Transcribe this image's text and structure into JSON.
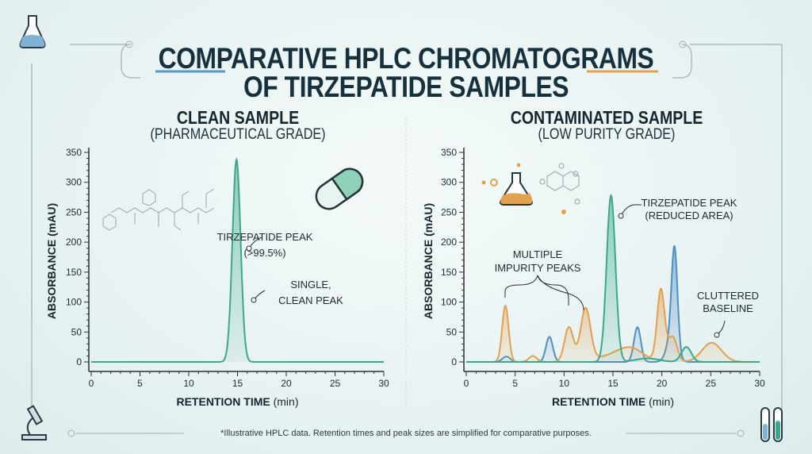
{
  "title": {
    "line1": "COMPARATIVE HPLC CHROMATOGRAMS",
    "line2": "OF TIRZEPATIDE SAMPLES"
  },
  "colors": {
    "green": "#3aa88a",
    "orange": "#e3a14f",
    "blue": "#4f8fc4",
    "text": "#16303c"
  },
  "footer": "*Illustrative HPLC data. Retention times and peak sizes are simplified for comparative purposes.",
  "chart_data": [
    {
      "type": "line",
      "title": "CLEAN SAMPLE",
      "subtitle": "(PHARMACEUTICAL GRADE)",
      "xlabel_bold": "RETENTION TIME",
      "xlabel_unit": "(min)",
      "ylabel": "ABSORBANCE (mAU)",
      "xlim": [
        0,
        30
      ],
      "ylim": [
        0,
        350
      ],
      "xticks": [
        "0",
        "5",
        "10",
        "15",
        "20",
        "25",
        "30"
      ],
      "yticks": [
        "0",
        "50",
        "100",
        "150",
        "200",
        "250",
        "300",
        "350"
      ],
      "grid": false,
      "series": [
        {
          "color": "#3aa88a",
          "baseline": 0,
          "peaks": [
            {
              "rt": 14.9,
              "height": 338,
              "width": 0.42
            }
          ]
        }
      ],
      "annotations": [
        {
          "text": [
            "TIRZEPATIDE PEAK",
            "(>99.5%)"
          ]
        },
        {
          "text": [
            "SINGLE,",
            "CLEAN PEAK"
          ]
        }
      ]
    },
    {
      "type": "line",
      "title": "CONTAMINATED SAMPLE",
      "subtitle": "(LOW PURITY GRADE)",
      "xlabel_bold": "RETENTION TIME",
      "xlabel_unit": "(min)",
      "ylabel": "ABSORBANCE (mAU)",
      "xlim": [
        0,
        30
      ],
      "ylim": [
        0,
        350
      ],
      "xticks": [
        "0",
        "5",
        "10",
        "15",
        "20",
        "25",
        "30"
      ],
      "yticks": [
        "0",
        "50",
        "100",
        "150",
        "200",
        "250",
        "300",
        "350"
      ],
      "grid": false,
      "series": [
        {
          "color": "#4f8fc4",
          "baseline": 0,
          "peaks": [
            {
              "rt": 4.1,
              "height": 9,
              "width": 0.4
            },
            {
              "rt": 8.5,
              "height": 42,
              "width": 0.35
            },
            {
              "rt": 17.5,
              "height": 58,
              "width": 0.35
            },
            {
              "rt": 21.0,
              "height": 40,
              "width": 0.5
            },
            {
              "rt": 21.3,
              "height": 160,
              "width": 0.3
            }
          ]
        },
        {
          "color": "#e3a14f",
          "baseline": 0,
          "peaks": [
            {
              "rt": 4.0,
              "height": 94,
              "width": 0.33
            },
            {
              "rt": 6.8,
              "height": 10,
              "width": 0.4
            },
            {
              "rt": 10.5,
              "height": 58,
              "width": 0.45
            },
            {
              "rt": 12.2,
              "height": 88,
              "width": 0.5
            },
            {
              "rt": 14.5,
              "height": 8,
              "width": 1.5
            },
            {
              "rt": 16.8,
              "height": 22,
              "width": 1.3
            },
            {
              "rt": 19.9,
              "height": 120,
              "width": 0.38
            },
            {
              "rt": 21.1,
              "height": 42,
              "width": 0.45
            },
            {
              "rt": 25.1,
              "height": 32,
              "width": 1.0
            }
          ]
        },
        {
          "color": "#3aa88a",
          "baseline": 0,
          "peaks": [
            {
              "rt": 14.8,
              "height": 278,
              "width": 0.45
            },
            {
              "rt": 18.5,
              "height": 6,
              "width": 1.2
            },
            {
              "rt": 22.5,
              "height": 25,
              "width": 0.5
            }
          ]
        }
      ],
      "annotations": [
        {
          "text": [
            "MULTIPLE",
            "IMPURITY PEAKS"
          ]
        },
        {
          "text": [
            "TIRZEPATIDE PEAK",
            "(REDUCED AREA)"
          ]
        },
        {
          "text": [
            "CLUTTERED",
            "BASELINE"
          ]
        }
      ]
    }
  ]
}
